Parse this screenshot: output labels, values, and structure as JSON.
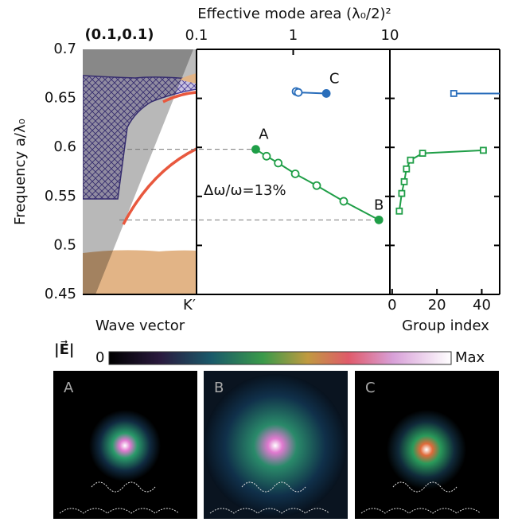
{
  "chart_data": [
    {
      "type": "band",
      "corner_label": "(0.1,0.1)",
      "ylabel": "Frequency  a/λ₀",
      "xlabel": "Wave vector",
      "xtick_label": "K′",
      "ylim": [
        0.45,
        0.7
      ],
      "yticks": [
        0.45,
        0.5,
        0.55,
        0.6,
        0.65,
        0.7
      ]
    },
    {
      "type": "line",
      "title": "Effective mode area (λ₀/2)²",
      "xscale": "log",
      "xlim": [
        0.1,
        10
      ],
      "xticks": [
        0.1,
        1,
        10
      ],
      "annotation": "Δω/ω=13%",
      "series": [
        {
          "color": "#1f9e47",
          "marker": "circle",
          "x": [
            0.41,
            0.53,
            0.7,
            1.05,
            1.75,
            3.33,
            7.7
          ],
          "values": [
            0.598,
            0.591,
            0.584,
            0.573,
            0.561,
            0.545,
            0.526
          ],
          "labels": [
            "A",
            null,
            null,
            null,
            null,
            null,
            "B"
          ]
        },
        {
          "color": "#2a6ebb",
          "marker": "circle",
          "x": [
            1.07,
            1.13,
            2.2
          ],
          "values": [
            0.657,
            0.656,
            0.655
          ],
          "labels": [
            null,
            null,
            "C"
          ]
        }
      ]
    },
    {
      "type": "line",
      "xlabel": "Group index",
      "xlim": [
        -1,
        48
      ],
      "xticks": [
        0,
        20,
        40
      ],
      "series": [
        {
          "color": "#1f9e47",
          "marker": "square",
          "x": [
            3.2,
            4.3,
            5.4,
            6.4,
            8.2,
            13.6,
            40.7
          ],
          "values": [
            0.535,
            0.553,
            0.565,
            0.578,
            0.587,
            0.594,
            0.597
          ]
        },
        {
          "color": "#2a6ebb",
          "marker": "square",
          "x": [
            27.5
          ],
          "values": [
            0.655
          ]
        }
      ]
    }
  ],
  "colorbar": {
    "label": "|E⃗|",
    "min": "0",
    "max": "Max"
  },
  "field_maps": {
    "panels": [
      "A",
      "B",
      "C"
    ]
  }
}
